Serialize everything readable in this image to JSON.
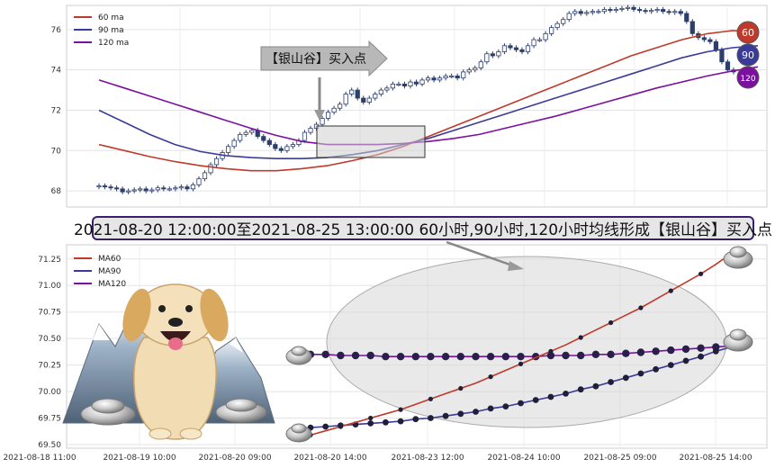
{
  "caption": "2021-08-20 12:00:00至2021-08-25 13:00:00 60小时,90小时,120小时均线形成【银山谷】买入点",
  "colors": {
    "ma60": "#c0392b",
    "ma90": "#3a3a9a",
    "ma120": "#7b0fa0",
    "candle_up": "#ffffff",
    "candle_down": "#2c3e6b",
    "bg": "#ffffff"
  },
  "chart_data": [
    {
      "type": "line",
      "title": "",
      "legend": {
        "position": "top-left",
        "entries": [
          "60 ma",
          "90 ma",
          "120 ma"
        ]
      },
      "grid": true,
      "ylim": [
        67.2,
        77.2
      ],
      "yticks": [
        68,
        70,
        72,
        74,
        76
      ],
      "annotation": "【银山谷】买入点",
      "end_badges": [
        "60",
        "90",
        "120"
      ],
      "candles_close": [
        68.25,
        68.2,
        68.15,
        68.1,
        67.95,
        68.0,
        68.05,
        68.1,
        68.0,
        68.05,
        68.15,
        68.1,
        68.1,
        68.15,
        68.2,
        68.1,
        68.3,
        68.6,
        68.9,
        69.3,
        69.6,
        69.9,
        70.2,
        70.5,
        70.8,
        70.9,
        71.0,
        70.7,
        70.5,
        70.3,
        70.1,
        70.0,
        70.2,
        70.3,
        70.5,
        70.9,
        71.1,
        71.3,
        71.6,
        71.9,
        72.1,
        72.3,
        72.8,
        73.0,
        72.6,
        72.4,
        72.6,
        72.8,
        73.0,
        73.1,
        73.3,
        73.3,
        73.2,
        73.4,
        73.3,
        73.5,
        73.6,
        73.5,
        73.6,
        73.7,
        73.7,
        73.6,
        73.9,
        74.0,
        74.1,
        74.4,
        74.8,
        74.7,
        74.9,
        75.2,
        75.1,
        75.0,
        74.9,
        75.2,
        75.5,
        75.5,
        75.8,
        76.1,
        76.3,
        76.5,
        76.8,
        76.9,
        76.8,
        76.85,
        76.9,
        76.9,
        77.0,
        76.95,
        77.0,
        77.05,
        77.1,
        77.0,
        76.95,
        76.9,
        76.95,
        77.0,
        76.9,
        76.85,
        76.9,
        76.8,
        76.4,
        75.8,
        75.6,
        75.5,
        75.4,
        75.0,
        74.4,
        74.0,
        73.9
      ],
      "series": [
        {
          "name": "60 ma",
          "values": [
            70.3,
            70.0,
            69.7,
            69.45,
            69.25,
            69.1,
            69.0,
            69.0,
            69.1,
            69.25,
            69.5,
            69.8,
            70.2,
            70.7,
            71.2,
            71.7,
            72.2,
            72.7,
            73.2,
            73.7,
            74.2,
            74.7,
            75.1,
            75.5,
            75.8,
            75.95,
            75.9
          ]
        },
        {
          "name": "90 ma",
          "values": [
            72.0,
            71.4,
            70.8,
            70.3,
            69.95,
            69.75,
            69.65,
            69.6,
            69.6,
            69.65,
            69.8,
            70.0,
            70.3,
            70.6,
            71.0,
            71.4,
            71.8,
            72.2,
            72.6,
            73.0,
            73.4,
            73.8,
            74.2,
            74.6,
            74.9,
            75.1,
            75.2
          ]
        },
        {
          "name": "120 ma",
          "values": [
            73.5,
            73.1,
            72.7,
            72.3,
            71.9,
            71.5,
            71.1,
            70.75,
            70.45,
            70.3,
            70.3,
            70.3,
            70.35,
            70.45,
            70.6,
            70.8,
            71.1,
            71.4,
            71.7,
            72.05,
            72.4,
            72.75,
            73.1,
            73.4,
            73.7,
            73.95,
            74.15
          ]
        }
      ]
    },
    {
      "type": "line",
      "title": "",
      "legend": {
        "position": "top-left",
        "entries": [
          "MA60",
          "MA90",
          "MA120"
        ]
      },
      "grid": true,
      "ylim": [
        69.5,
        71.35
      ],
      "yticks": [
        69.5,
        69.75,
        70.0,
        70.25,
        70.5,
        70.75,
        71.0,
        71.25
      ],
      "ytick_labels": [
        "69.50",
        "69.75",
        "70.00",
        "70.25",
        "70.50",
        "70.75",
        "71.00",
        "71.25"
      ],
      "xtick_labels": [
        "2021-08-18 11:00",
        "2021-08-19 10:00",
        "2021-08-20 09:00",
        "2021-08-20 14:00",
        "2021-08-23 12:00",
        "2021-08-24 10:00",
        "2021-08-25 09:00",
        "2021-08-25 14:00"
      ],
      "series": [
        {
          "name": "MA60",
          "values": [
            69.59,
            69.63,
            69.67,
            69.71,
            69.75,
            69.79,
            69.83,
            69.88,
            69.93,
            69.98,
            70.03,
            70.08,
            70.14,
            70.2,
            70.26,
            70.32,
            70.38,
            70.44,
            70.51,
            70.58,
            70.65,
            70.72,
            70.79,
            70.87,
            70.95,
            71.03,
            71.11,
            71.2,
            71.3
          ]
        },
        {
          "name": "MA90",
          "values": [
            69.66,
            69.67,
            69.68,
            69.69,
            69.7,
            69.71,
            69.72,
            69.74,
            69.75,
            69.77,
            69.79,
            69.81,
            69.84,
            69.86,
            69.89,
            69.92,
            69.95,
            69.98,
            70.02,
            70.05,
            70.09,
            70.13,
            70.17,
            70.21,
            70.25,
            70.29,
            70.33,
            70.38,
            70.42
          ]
        },
        {
          "name": "MA120",
          "values": [
            70.35,
            70.35,
            70.34,
            70.34,
            70.34,
            70.33,
            70.33,
            70.33,
            70.33,
            70.33,
            70.33,
            70.33,
            70.33,
            70.33,
            70.33,
            70.33,
            70.34,
            70.34,
            70.34,
            70.35,
            70.35,
            70.36,
            70.37,
            70.38,
            70.39,
            70.4,
            70.41,
            70.42,
            70.43
          ]
        }
      ]
    }
  ]
}
